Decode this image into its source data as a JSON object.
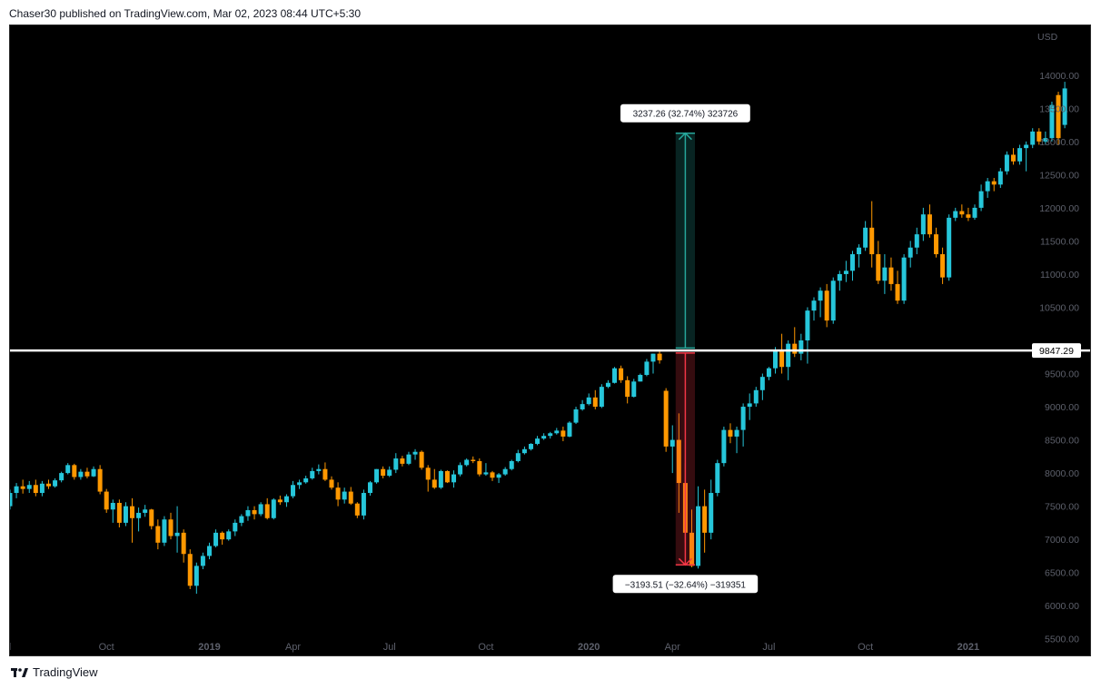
{
  "header": {
    "published_text": "Chaser30 published on TradingView.com, Mar 02, 2023 08:44 UTC+5:30"
  },
  "footer": {
    "brand": "TradingView"
  },
  "chart_data": {
    "type": "candlestick",
    "currency": "USD",
    "y_ticks": [
      "14000.00",
      "13500.00",
      "13000.00",
      "12500.00",
      "12000.00",
      "11500.00",
      "11000.00",
      "10500.00",
      "9500.00",
      "9000.00",
      "8500.00",
      "8000.00",
      "7500.00",
      "7000.00",
      "6500.00",
      "6000.00",
      "5500.00"
    ],
    "ylim": [
      5250,
      14750
    ],
    "x_ticks": [
      {
        "label": "l",
        "week": 0
      },
      {
        "label": "Oct",
        "week": 15
      },
      {
        "label": "2019",
        "week": 31
      },
      {
        "label": "Apr",
        "week": 44
      },
      {
        "label": "Jul",
        "week": 59
      },
      {
        "label": "Oct",
        "week": 74
      },
      {
        "label": "2020",
        "week": 90
      },
      {
        "label": "Apr",
        "week": 103
      },
      {
        "label": "Jul",
        "week": 118
      },
      {
        "label": "Oct",
        "week": 133
      },
      {
        "label": "2021",
        "week": 149
      }
    ],
    "horizontal_line": {
      "value": 9847.29,
      "label": "9847.29",
      "color": "#ffffff"
    },
    "up_color": "#26c6da",
    "down_color": "#ff9800",
    "candles": [
      {
        "o": 7500,
        "h": 7750,
        "l": 7450,
        "c": 7700
      },
      {
        "o": 7700,
        "h": 7850,
        "l": 7620,
        "c": 7800
      },
      {
        "o": 7800,
        "h": 7900,
        "l": 7690,
        "c": 7760
      },
      {
        "o": 7760,
        "h": 7880,
        "l": 7700,
        "c": 7820
      },
      {
        "o": 7820,
        "h": 7900,
        "l": 7650,
        "c": 7700
      },
      {
        "o": 7700,
        "h": 7880,
        "l": 7650,
        "c": 7840
      },
      {
        "o": 7840,
        "h": 7900,
        "l": 7760,
        "c": 7800
      },
      {
        "o": 7800,
        "h": 7920,
        "l": 7780,
        "c": 7890
      },
      {
        "o": 7890,
        "h": 8020,
        "l": 7860,
        "c": 8000
      },
      {
        "o": 8000,
        "h": 8150,
        "l": 7980,
        "c": 8120
      },
      {
        "o": 8120,
        "h": 8140,
        "l": 7900,
        "c": 7940
      },
      {
        "o": 7940,
        "h": 8060,
        "l": 7900,
        "c": 8020
      },
      {
        "o": 8020,
        "h": 8080,
        "l": 7920,
        "c": 7950
      },
      {
        "o": 7950,
        "h": 8100,
        "l": 7940,
        "c": 8060
      },
      {
        "o": 8060,
        "h": 8120,
        "l": 7680,
        "c": 7720
      },
      {
        "o": 7720,
        "h": 7760,
        "l": 7400,
        "c": 7450
      },
      {
        "o": 7450,
        "h": 7600,
        "l": 7250,
        "c": 7550
      },
      {
        "o": 7550,
        "h": 7600,
        "l": 7180,
        "c": 7250
      },
      {
        "o": 7250,
        "h": 7560,
        "l": 7200,
        "c": 7500
      },
      {
        "o": 7500,
        "h": 7620,
        "l": 6950,
        "c": 7320
      },
      {
        "o": 7320,
        "h": 7480,
        "l": 7120,
        "c": 7400
      },
      {
        "o": 7400,
        "h": 7520,
        "l": 7340,
        "c": 7450
      },
      {
        "o": 7450,
        "h": 7460,
        "l": 7150,
        "c": 7200
      },
      {
        "o": 7200,
        "h": 7300,
        "l": 6850,
        "c": 6950
      },
      {
        "o": 6950,
        "h": 7350,
        "l": 6900,
        "c": 7300
      },
      {
        "o": 7300,
        "h": 7400,
        "l": 7000,
        "c": 7050
      },
      {
        "o": 7050,
        "h": 7500,
        "l": 6800,
        "c": 7100
      },
      {
        "o": 7100,
        "h": 7150,
        "l": 6650,
        "c": 6780
      },
      {
        "o": 6780,
        "h": 6850,
        "l": 6250,
        "c": 6300
      },
      {
        "o": 6300,
        "h": 6650,
        "l": 6180,
        "c": 6600
      },
      {
        "o": 6600,
        "h": 6800,
        "l": 6550,
        "c": 6750
      },
      {
        "o": 6750,
        "h": 6950,
        "l": 6700,
        "c": 6900
      },
      {
        "o": 6900,
        "h": 7150,
        "l": 6880,
        "c": 7100
      },
      {
        "o": 7100,
        "h": 7120,
        "l": 6920,
        "c": 7000
      },
      {
        "o": 7000,
        "h": 7150,
        "l": 6980,
        "c": 7120
      },
      {
        "o": 7120,
        "h": 7300,
        "l": 7050,
        "c": 7250
      },
      {
        "o": 7250,
        "h": 7380,
        "l": 7200,
        "c": 7350
      },
      {
        "o": 7350,
        "h": 7500,
        "l": 7280,
        "c": 7440
      },
      {
        "o": 7440,
        "h": 7500,
        "l": 7300,
        "c": 7380
      },
      {
        "o": 7380,
        "h": 7560,
        "l": 7350,
        "c": 7530
      },
      {
        "o": 7530,
        "h": 7620,
        "l": 7300,
        "c": 7320
      },
      {
        "o": 7320,
        "h": 7620,
        "l": 7300,
        "c": 7600
      },
      {
        "o": 7600,
        "h": 7660,
        "l": 7520,
        "c": 7560
      },
      {
        "o": 7560,
        "h": 7680,
        "l": 7490,
        "c": 7650
      },
      {
        "o": 7650,
        "h": 7880,
        "l": 7620,
        "c": 7820
      },
      {
        "o": 7820,
        "h": 7900,
        "l": 7760,
        "c": 7860
      },
      {
        "o": 7860,
        "h": 7960,
        "l": 7840,
        "c": 7920
      },
      {
        "o": 7920,
        "h": 8080,
        "l": 7900,
        "c": 8030
      },
      {
        "o": 8030,
        "h": 8130,
        "l": 7980,
        "c": 8060
      },
      {
        "o": 8060,
        "h": 8160,
        "l": 7880,
        "c": 7900
      },
      {
        "o": 7900,
        "h": 7950,
        "l": 7750,
        "c": 7780
      },
      {
        "o": 7780,
        "h": 7860,
        "l": 7500,
        "c": 7600
      },
      {
        "o": 7600,
        "h": 7780,
        "l": 7540,
        "c": 7720
      },
      {
        "o": 7720,
        "h": 7790,
        "l": 7520,
        "c": 7540
      },
      {
        "o": 7540,
        "h": 7560,
        "l": 7320,
        "c": 7360
      },
      {
        "o": 7360,
        "h": 7750,
        "l": 7300,
        "c": 7700
      },
      {
        "o": 7700,
        "h": 7880,
        "l": 7660,
        "c": 7860
      },
      {
        "o": 7860,
        "h": 8060,
        "l": 7840,
        "c": 8060
      },
      {
        "o": 8060,
        "h": 8100,
        "l": 7920,
        "c": 7960
      },
      {
        "o": 7960,
        "h": 8100,
        "l": 7940,
        "c": 8050
      },
      {
        "o": 8050,
        "h": 8300,
        "l": 8000,
        "c": 8220
      },
      {
        "o": 8220,
        "h": 8260,
        "l": 8100,
        "c": 8140
      },
      {
        "o": 8140,
        "h": 8320,
        "l": 8120,
        "c": 8280
      },
      {
        "o": 8280,
        "h": 8360,
        "l": 8200,
        "c": 8320
      },
      {
        "o": 8320,
        "h": 8340,
        "l": 8050,
        "c": 8080
      },
      {
        "o": 8080,
        "h": 8120,
        "l": 7720,
        "c": 7900
      },
      {
        "o": 7900,
        "h": 8060,
        "l": 7760,
        "c": 7780
      },
      {
        "o": 7780,
        "h": 8050,
        "l": 7760,
        "c": 8030
      },
      {
        "o": 8030,
        "h": 8040,
        "l": 7850,
        "c": 7860
      },
      {
        "o": 7860,
        "h": 8040,
        "l": 7780,
        "c": 7980
      },
      {
        "o": 7980,
        "h": 8160,
        "l": 7950,
        "c": 8120
      },
      {
        "o": 8120,
        "h": 8220,
        "l": 8100,
        "c": 8200
      },
      {
        "o": 8200,
        "h": 8250,
        "l": 8150,
        "c": 8180
      },
      {
        "o": 8180,
        "h": 8220,
        "l": 7950,
        "c": 7980
      },
      {
        "o": 7980,
        "h": 8150,
        "l": 7960,
        "c": 8010
      },
      {
        "o": 8010,
        "h": 8030,
        "l": 7880,
        "c": 7930
      },
      {
        "o": 7930,
        "h": 8000,
        "l": 7850,
        "c": 7980
      },
      {
        "o": 7980,
        "h": 8090,
        "l": 7960,
        "c": 8060
      },
      {
        "o": 8060,
        "h": 8200,
        "l": 8040,
        "c": 8180
      },
      {
        "o": 8180,
        "h": 8350,
        "l": 8160,
        "c": 8300
      },
      {
        "o": 8300,
        "h": 8400,
        "l": 8280,
        "c": 8360
      },
      {
        "o": 8360,
        "h": 8450,
        "l": 8340,
        "c": 8440
      },
      {
        "o": 8440,
        "h": 8560,
        "l": 8420,
        "c": 8520
      },
      {
        "o": 8520,
        "h": 8600,
        "l": 8500,
        "c": 8560
      },
      {
        "o": 8560,
        "h": 8620,
        "l": 8520,
        "c": 8600
      },
      {
        "o": 8600,
        "h": 8680,
        "l": 8580,
        "c": 8640
      },
      {
        "o": 8640,
        "h": 8700,
        "l": 8480,
        "c": 8550
      },
      {
        "o": 8550,
        "h": 8780,
        "l": 8540,
        "c": 8760
      },
      {
        "o": 8760,
        "h": 9000,
        "l": 8740,
        "c": 8960
      },
      {
        "o": 8960,
        "h": 9100,
        "l": 8940,
        "c": 9040
      },
      {
        "o": 9040,
        "h": 9200,
        "l": 9020,
        "c": 9140
      },
      {
        "o": 9140,
        "h": 9250,
        "l": 8960,
        "c": 9000
      },
      {
        "o": 9000,
        "h": 9340,
        "l": 8980,
        "c": 9300
      },
      {
        "o": 9300,
        "h": 9400,
        "l": 9280,
        "c": 9360
      },
      {
        "o": 9360,
        "h": 9600,
        "l": 9350,
        "c": 9580
      },
      {
        "o": 9580,
        "h": 9620,
        "l": 9360,
        "c": 9400
      },
      {
        "o": 9400,
        "h": 9460,
        "l": 9050,
        "c": 9150
      },
      {
        "o": 9150,
        "h": 9420,
        "l": 9140,
        "c": 9380
      },
      {
        "o": 9380,
        "h": 9500,
        "l": 9380,
        "c": 9480
      },
      {
        "o": 9480,
        "h": 9720,
        "l": 9460,
        "c": 9680
      },
      {
        "o": 9680,
        "h": 9800,
        "l": 9500,
        "c": 9800
      },
      {
        "o": 9800,
        "h": 9850,
        "l": 9650,
        "c": 9700
      },
      {
        "o": 9240,
        "h": 9280,
        "l": 8320,
        "c": 8400
      },
      {
        "o": 8400,
        "h": 8720,
        "l": 8000,
        "c": 8500
      },
      {
        "o": 8500,
        "h": 8900,
        "l": 7400,
        "c": 7850
      },
      {
        "o": 7850,
        "h": 8150,
        "l": 6950,
        "c": 7100
      },
      {
        "o": 7100,
        "h": 7450,
        "l": 6580,
        "c": 6600
      },
      {
        "o": 6600,
        "h": 7800,
        "l": 6560,
        "c": 7500
      },
      {
        "o": 7500,
        "h": 7750,
        "l": 6800,
        "c": 7100
      },
      {
        "o": 7100,
        "h": 7900,
        "l": 7000,
        "c": 7700
      },
      {
        "o": 7700,
        "h": 8200,
        "l": 7650,
        "c": 8150
      },
      {
        "o": 8150,
        "h": 8700,
        "l": 8100,
        "c": 8650
      },
      {
        "o": 8650,
        "h": 8750,
        "l": 8450,
        "c": 8550
      },
      {
        "o": 8550,
        "h": 8700,
        "l": 8300,
        "c": 8650
      },
      {
        "o": 8650,
        "h": 9050,
        "l": 8400,
        "c": 9000
      },
      {
        "o": 9000,
        "h": 9200,
        "l": 8800,
        "c": 9050
      },
      {
        "o": 9050,
        "h": 9300,
        "l": 9000,
        "c": 9250
      },
      {
        "o": 9250,
        "h": 9500,
        "l": 9100,
        "c": 9450
      },
      {
        "o": 9450,
        "h": 9600,
        "l": 9400,
        "c": 9580
      },
      {
        "o": 9580,
        "h": 9900,
        "l": 9500,
        "c": 9850
      },
      {
        "o": 9850,
        "h": 10100,
        "l": 9500,
        "c": 9600
      },
      {
        "o": 9600,
        "h": 10000,
        "l": 9400,
        "c": 9950
      },
      {
        "o": 9950,
        "h": 10200,
        "l": 9750,
        "c": 9800
      },
      {
        "o": 9800,
        "h": 10100,
        "l": 9700,
        "c": 10000
      },
      {
        "o": 10000,
        "h": 10500,
        "l": 9650,
        "c": 10450
      },
      {
        "o": 10450,
        "h": 10650,
        "l": 10300,
        "c": 10600
      },
      {
        "o": 10600,
        "h": 10800,
        "l": 10350,
        "c": 10750
      },
      {
        "o": 10750,
        "h": 10850,
        "l": 10200,
        "c": 10300
      },
      {
        "o": 10300,
        "h": 10950,
        "l": 10250,
        "c": 10900
      },
      {
        "o": 10900,
        "h": 11050,
        "l": 10750,
        "c": 11000
      },
      {
        "o": 11000,
        "h": 11200,
        "l": 10880,
        "c": 11050
      },
      {
        "o": 11050,
        "h": 11350,
        "l": 10900,
        "c": 11300
      },
      {
        "o": 11300,
        "h": 11450,
        "l": 11100,
        "c": 11400
      },
      {
        "o": 11400,
        "h": 11800,
        "l": 11350,
        "c": 11700
      },
      {
        "o": 11700,
        "h": 12100,
        "l": 11100,
        "c": 11300
      },
      {
        "o": 11300,
        "h": 11500,
        "l": 10850,
        "c": 10900
      },
      {
        "o": 10900,
        "h": 11300,
        "l": 10700,
        "c": 11100
      },
      {
        "o": 11100,
        "h": 11250,
        "l": 10750,
        "c": 10850
      },
      {
        "o": 10850,
        "h": 11050,
        "l": 10550,
        "c": 10600
      },
      {
        "o": 10600,
        "h": 11300,
        "l": 10550,
        "c": 11250
      },
      {
        "o": 11250,
        "h": 11500,
        "l": 11100,
        "c": 11400
      },
      {
        "o": 11400,
        "h": 11700,
        "l": 11300,
        "c": 11600
      },
      {
        "o": 11600,
        "h": 12000,
        "l": 11500,
        "c": 11900
      },
      {
        "o": 11900,
        "h": 12050,
        "l": 11550,
        "c": 11600
      },
      {
        "o": 11600,
        "h": 11700,
        "l": 11250,
        "c": 11300
      },
      {
        "o": 11300,
        "h": 11400,
        "l": 10850,
        "c": 10950
      },
      {
        "o": 10950,
        "h": 11900,
        "l": 10900,
        "c": 11850
      },
      {
        "o": 11850,
        "h": 12000,
        "l": 11800,
        "c": 11950
      },
      {
        "o": 11950,
        "h": 12050,
        "l": 11850,
        "c": 11900
      },
      {
        "o": 11900,
        "h": 12000,
        "l": 11800,
        "c": 11850
      },
      {
        "o": 11850,
        "h": 12050,
        "l": 11820,
        "c": 12000
      },
      {
        "o": 12000,
        "h": 12350,
        "l": 11950,
        "c": 12250
      },
      {
        "o": 12250,
        "h": 12450,
        "l": 12150,
        "c": 12400
      },
      {
        "o": 12400,
        "h": 12450,
        "l": 12250,
        "c": 12350
      },
      {
        "o": 12350,
        "h": 12600,
        "l": 12300,
        "c": 12550
      },
      {
        "o": 12550,
        "h": 12850,
        "l": 12500,
        "c": 12800
      },
      {
        "o": 12800,
        "h": 12900,
        "l": 12650,
        "c": 12700
      },
      {
        "o": 12700,
        "h": 12950,
        "l": 12650,
        "c": 12900
      },
      {
        "o": 12900,
        "h": 13000,
        "l": 12550,
        "c": 12950
      },
      {
        "o": 12950,
        "h": 13200,
        "l": 12900,
        "c": 13150
      },
      {
        "o": 13150,
        "h": 13200,
        "l": 12950,
        "c": 13000
      },
      {
        "o": 13000,
        "h": 13150,
        "l": 12950,
        "c": 13050
      },
      {
        "o": 13050,
        "h": 13600,
        "l": 13000,
        "c": 13550
      },
      {
        "o": 13700,
        "h": 13750,
        "l": 12950,
        "c": 13050
      },
      {
        "o": 13250,
        "h": 13900,
        "l": 13200,
        "c": 13800
      }
    ],
    "measure": {
      "bar_start": 103.5,
      "bar_end": 106.5,
      "mid": 9847.29,
      "up": {
        "from": 9885,
        "to": 13125,
        "label": "3237.26 (32.74%) 323726",
        "color": "#26a69a"
      },
      "down": {
        "from": 9810,
        "to": 6615,
        "label": "−3193.51 (−32.64%) −319351",
        "color": "#f23645"
      }
    }
  }
}
